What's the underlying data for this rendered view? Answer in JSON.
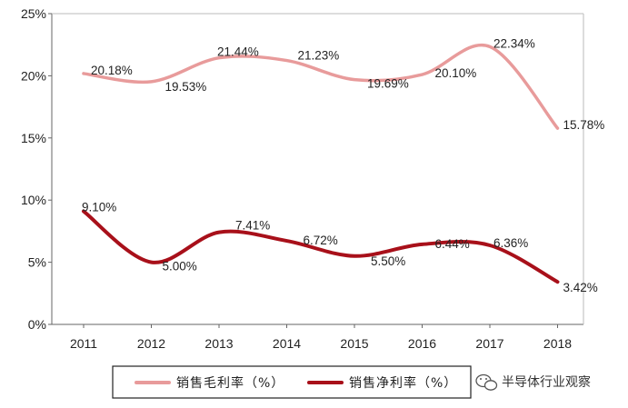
{
  "chart_data": {
    "type": "line",
    "categories": [
      "2011",
      "2012",
      "2013",
      "2014",
      "2015",
      "2016",
      "2017",
      "2018"
    ],
    "y_ticks": [
      "0%",
      "5%",
      "10%",
      "15%",
      "20%",
      "25%"
    ],
    "ylim": [
      0,
      25
    ],
    "series": [
      {
        "name": "销售毛利率（%）",
        "color": "#e89b9b",
        "values": [
          20.18,
          19.53,
          21.44,
          21.23,
          19.69,
          20.1,
          22.34,
          15.78
        ],
        "labels": [
          "20.18%",
          "19.53%",
          "21.44%",
          "21.23%",
          "19.69%",
          "20.10%",
          "22.34%",
          "15.78%"
        ]
      },
      {
        "name": "销售净利率（%）",
        "color": "#a8101a",
        "values": [
          9.1,
          5.0,
          7.41,
          6.72,
          5.5,
          6.44,
          6.36,
          3.42
        ],
        "labels": [
          "9.10%",
          "5.00%",
          "7.41%",
          "6.72%",
          "5.50%",
          "6.44%",
          "6.36%",
          "3.42%"
        ]
      }
    ],
    "grid": false,
    "legend_position": "bottom"
  },
  "watermark": {
    "text": "半导体行业观察",
    "icon": "wechat-icon"
  }
}
